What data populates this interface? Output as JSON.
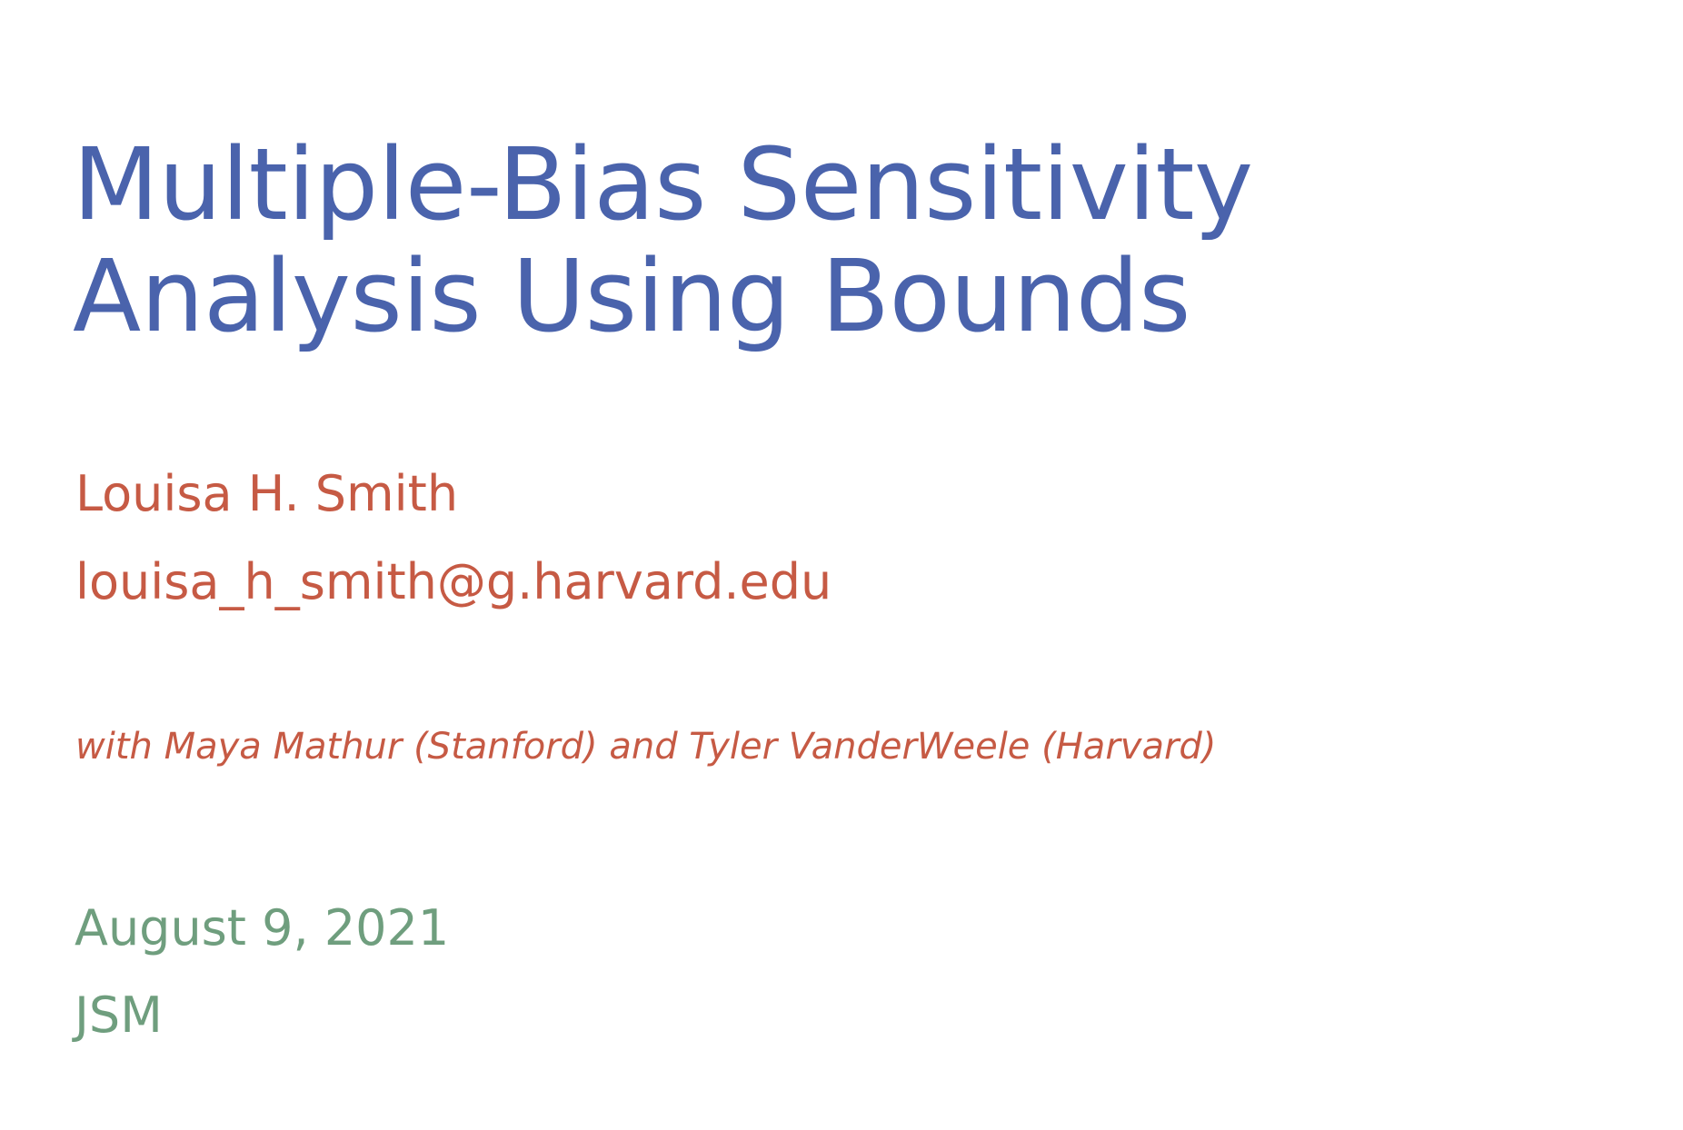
{
  "slide": {
    "title_lines": [
      "Multiple-Bias Sensitivity",
      "Analysis Using Bounds"
    ],
    "author": {
      "name": "Louisa H. Smith",
      "email": "louisa_h_smith@g.harvard.edu"
    },
    "collaborators": "with Maya Mathur (Stanford) and Tyler VanderWeele (Harvard)",
    "date": "August 9, 2021",
    "venue": "JSM"
  },
  "colors": {
    "title": "#4a63ac",
    "author": "#c65a44",
    "date_venue": "#6f9e7e",
    "background": "#ffffff"
  }
}
